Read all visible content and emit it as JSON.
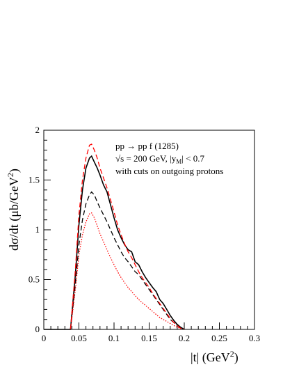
{
  "chart_data": {
    "type": "line",
    "annotation_lines": [
      "pp → pp f (1285)",
      "√s = 200 GeV,  |y",
      "M",
      "| < 0.7",
      "with cuts on outgoing protons"
    ],
    "xlabel": "|t| (GeV",
    "xlabel_sup": "2",
    "xlabel_close": ")",
    "ylabel": "dσ/dt (μb/GeV",
    "ylabel_sup": "2",
    "ylabel_close": ")",
    "xlim": [
      0,
      0.3
    ],
    "ylim": [
      0,
      2
    ],
    "xticks": [
      "0",
      "0.05",
      "0.1",
      "0.15",
      "0.2",
      "0.25",
      "0.3"
    ],
    "yticks": [
      "0",
      "0.5",
      "1",
      "1.5",
      "2"
    ],
    "grid": false,
    "series": [
      {
        "color": "#000000",
        "style": "solid",
        "points": [
          [
            0,
            0
          ],
          [
            0.038,
            0
          ],
          [
            0.045,
            0.55
          ],
          [
            0.05,
            1.05
          ],
          [
            0.055,
            1.4
          ],
          [
            0.06,
            1.62
          ],
          [
            0.065,
            1.72
          ],
          [
            0.068,
            1.74
          ],
          [
            0.072,
            1.68
          ],
          [
            0.076,
            1.62
          ],
          [
            0.08,
            1.55
          ],
          [
            0.085,
            1.45
          ],
          [
            0.09,
            1.38
          ],
          [
            0.095,
            1.25
          ],
          [
            0.1,
            1.12
          ],
          [
            0.105,
            1.0
          ],
          [
            0.11,
            0.92
          ],
          [
            0.115,
            0.85
          ],
          [
            0.12,
            0.8
          ],
          [
            0.125,
            0.78
          ],
          [
            0.13,
            0.68
          ],
          [
            0.135,
            0.65
          ],
          [
            0.14,
            0.58
          ],
          [
            0.145,
            0.52
          ],
          [
            0.15,
            0.47
          ],
          [
            0.155,
            0.42
          ],
          [
            0.16,
            0.38
          ],
          [
            0.165,
            0.3
          ],
          [
            0.17,
            0.26
          ],
          [
            0.175,
            0.2
          ],
          [
            0.18,
            0.14
          ],
          [
            0.185,
            0.09
          ],
          [
            0.19,
            0.05
          ],
          [
            0.195,
            0.02
          ],
          [
            0.2,
            0.0
          ]
        ]
      },
      {
        "color": "#000000",
        "style": "dashed",
        "points": [
          [
            0.038,
            0
          ],
          [
            0.045,
            0.45
          ],
          [
            0.05,
            0.85
          ],
          [
            0.055,
            1.1
          ],
          [
            0.06,
            1.26
          ],
          [
            0.065,
            1.35
          ],
          [
            0.068,
            1.38
          ],
          [
            0.072,
            1.35
          ],
          [
            0.076,
            1.28
          ],
          [
            0.08,
            1.22
          ],
          [
            0.085,
            1.15
          ],
          [
            0.09,
            1.08
          ],
          [
            0.095,
            1.0
          ],
          [
            0.1,
            0.92
          ],
          [
            0.105,
            0.85
          ],
          [
            0.11,
            0.78
          ],
          [
            0.115,
            0.72
          ],
          [
            0.12,
            0.68
          ],
          [
            0.125,
            0.63
          ],
          [
            0.13,
            0.58
          ],
          [
            0.135,
            0.55
          ],
          [
            0.14,
            0.5
          ],
          [
            0.145,
            0.45
          ],
          [
            0.15,
            0.4
          ],
          [
            0.155,
            0.35
          ],
          [
            0.16,
            0.3
          ],
          [
            0.165,
            0.25
          ],
          [
            0.17,
            0.2
          ],
          [
            0.175,
            0.15
          ],
          [
            0.18,
            0.1
          ],
          [
            0.185,
            0.07
          ],
          [
            0.19,
            0.04
          ],
          [
            0.195,
            0.01
          ],
          [
            0.2,
            0.0
          ]
        ]
      },
      {
        "color": "#ff0000",
        "style": "dashed",
        "points": [
          [
            0.038,
            0
          ],
          [
            0.045,
            0.6
          ],
          [
            0.05,
            1.15
          ],
          [
            0.055,
            1.5
          ],
          [
            0.06,
            1.72
          ],
          [
            0.065,
            1.85
          ],
          [
            0.068,
            1.86
          ],
          [
            0.072,
            1.8
          ],
          [
            0.076,
            1.72
          ],
          [
            0.08,
            1.62
          ],
          [
            0.085,
            1.52
          ],
          [
            0.09,
            1.42
          ],
          [
            0.095,
            1.3
          ],
          [
            0.1,
            1.18
          ],
          [
            0.105,
            1.05
          ],
          [
            0.11,
            0.95
          ],
          [
            0.115,
            0.86
          ],
          [
            0.12,
            0.78
          ],
          [
            0.125,
            0.72
          ],
          [
            0.13,
            0.65
          ],
          [
            0.135,
            0.58
          ],
          [
            0.14,
            0.52
          ],
          [
            0.145,
            0.47
          ],
          [
            0.15,
            0.42
          ],
          [
            0.155,
            0.36
          ],
          [
            0.16,
            0.31
          ],
          [
            0.165,
            0.26
          ],
          [
            0.17,
            0.21
          ],
          [
            0.175,
            0.16
          ],
          [
            0.18,
            0.11
          ],
          [
            0.185,
            0.07
          ],
          [
            0.19,
            0.04
          ],
          [
            0.195,
            0.01
          ],
          [
            0.2,
            0.0
          ]
        ]
      },
      {
        "color": "#ff0000",
        "style": "dotted",
        "points": [
          [
            0.038,
            0
          ],
          [
            0.045,
            0.4
          ],
          [
            0.05,
            0.75
          ],
          [
            0.055,
            0.95
          ],
          [
            0.06,
            1.08
          ],
          [
            0.065,
            1.16
          ],
          [
            0.068,
            1.17
          ],
          [
            0.072,
            1.12
          ],
          [
            0.076,
            1.04
          ],
          [
            0.08,
            0.96
          ],
          [
            0.085,
            0.88
          ],
          [
            0.09,
            0.8
          ],
          [
            0.095,
            0.72
          ],
          [
            0.1,
            0.65
          ],
          [
            0.105,
            0.58
          ],
          [
            0.11,
            0.52
          ],
          [
            0.115,
            0.47
          ],
          [
            0.12,
            0.42
          ],
          [
            0.125,
            0.38
          ],
          [
            0.13,
            0.34
          ],
          [
            0.135,
            0.3
          ],
          [
            0.14,
            0.27
          ],
          [
            0.145,
            0.24
          ],
          [
            0.15,
            0.21
          ],
          [
            0.155,
            0.18
          ],
          [
            0.16,
            0.15
          ],
          [
            0.165,
            0.12
          ],
          [
            0.17,
            0.1
          ],
          [
            0.175,
            0.08
          ],
          [
            0.18,
            0.06
          ],
          [
            0.185,
            0.04
          ],
          [
            0.19,
            0.02
          ],
          [
            0.195,
            0.01
          ],
          [
            0.2,
            0.0
          ]
        ]
      }
    ]
  }
}
